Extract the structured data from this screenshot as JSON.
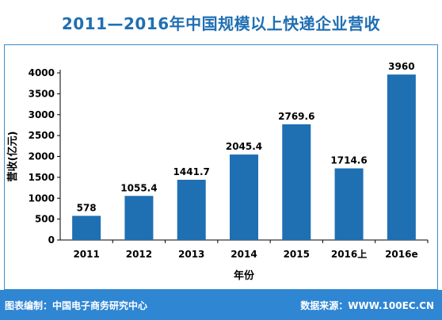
{
  "header": {
    "title": "2011—2016年中国规模以上快递企业营收"
  },
  "footer": {
    "left": "图表编制：中国电子商务研究中心",
    "right": "数据来源：WWW.100EC.CN"
  },
  "colors": {
    "bar": "#1f6fb3",
    "accent": "#2f86d3",
    "title": "#1f6fb3",
    "text": "#000000"
  },
  "chart_data": {
    "type": "bar",
    "title": "2011—2016年中国规模以上快递企业营收",
    "xlabel": "年份",
    "ylabel": "营收(亿元)",
    "categories": [
      "2011",
      "2012",
      "2013",
      "2014",
      "2015",
      "2016上",
      "2016e"
    ],
    "values": [
      578,
      1055.4,
      1441.7,
      2045.4,
      2769.6,
      1714.6,
      3960
    ],
    "data_labels": [
      "578",
      "1055.4",
      "1441.7",
      "2045.4",
      "2769.6",
      "1714.6",
      "3960"
    ],
    "ylim": [
      0,
      4000
    ],
    "yticks": [
      0,
      500,
      1000,
      1500,
      2000,
      2500,
      3000,
      3500,
      4000
    ],
    "grid": false,
    "legend": "none"
  }
}
